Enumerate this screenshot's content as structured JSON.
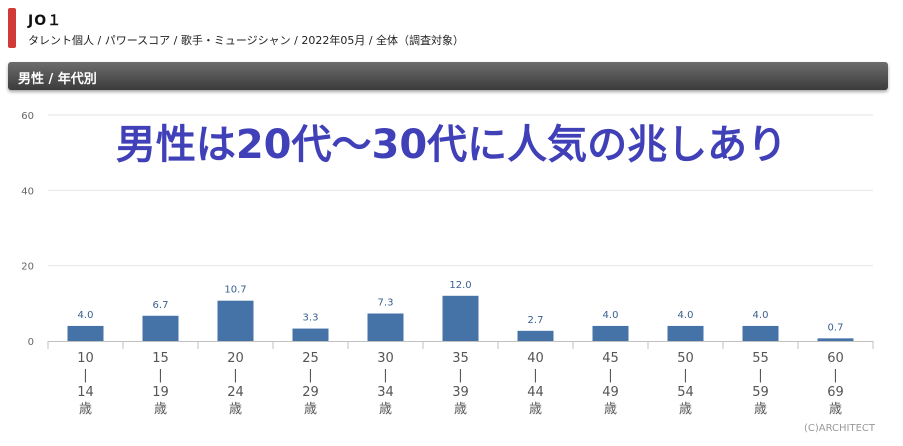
{
  "header": {
    "title": "JO１",
    "subtitle": "タレント個人 / パワースコア / 歌手・ミュージシャン / 2022年05月 / 全体（調査対象）"
  },
  "section": {
    "label": "男性 / 年代別"
  },
  "annotation": {
    "text": "男性は20代～30代に人気の兆しあり"
  },
  "credit": "(C)ARCHITECT",
  "colors": {
    "bar": "#4572a7",
    "accent": "#d23a3a",
    "overlay_text": "#4040b8"
  },
  "chart_data": {
    "type": "bar",
    "categories": [
      [
        "10",
        "|",
        "14",
        "歳"
      ],
      [
        "15",
        "|",
        "19",
        "歳"
      ],
      [
        "20",
        "|",
        "24",
        "歳"
      ],
      [
        "25",
        "|",
        "29",
        "歳"
      ],
      [
        "30",
        "|",
        "34",
        "歳"
      ],
      [
        "35",
        "|",
        "39",
        "歳"
      ],
      [
        "40",
        "|",
        "44",
        "歳"
      ],
      [
        "45",
        "|",
        "49",
        "歳"
      ],
      [
        "50",
        "|",
        "54",
        "歳"
      ],
      [
        "55",
        "|",
        "59",
        "歳"
      ],
      [
        "60",
        "|",
        "69",
        "歳"
      ]
    ],
    "values": [
      4.0,
      6.7,
      10.7,
      3.3,
      7.3,
      12.0,
      2.7,
      4.0,
      4.0,
      4.0,
      0.7
    ],
    "value_labels": [
      "4.0",
      "6.7",
      "10.7",
      "3.3",
      "7.3",
      "12.0",
      "2.7",
      "4.0",
      "4.0",
      "4.0",
      "0.7"
    ],
    "ylim": [
      0,
      60
    ],
    "yticks": [
      "0",
      "20",
      "40",
      "60"
    ],
    "ytick_values": [
      0,
      20,
      40,
      60
    ],
    "grid": true
  }
}
